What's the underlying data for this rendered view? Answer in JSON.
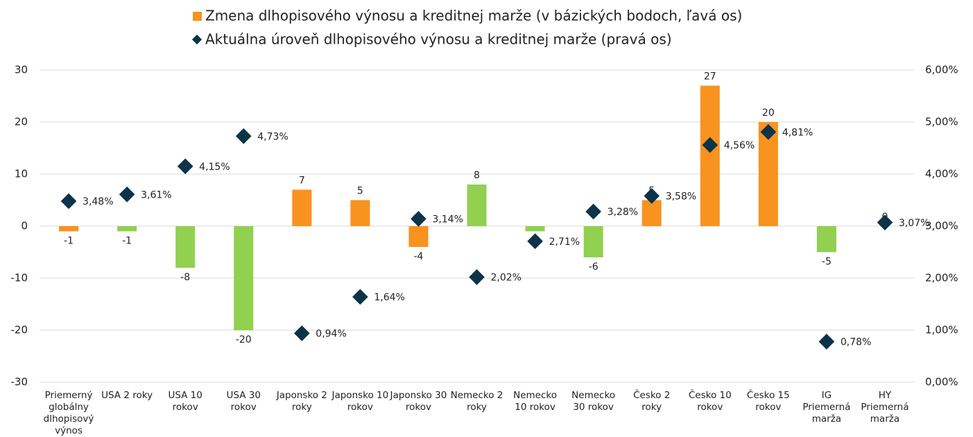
{
  "chart_data": {
    "type": "bar",
    "categories": [
      "Priemerný globálny dlhopisový výnos",
      "USA 2 roky",
      "USA 10 rokov",
      "USA 30 rokov",
      "Japonsko 2 roky",
      "Japonsko 10 rokov",
      "Japonsko 30 rokov",
      "Nemecko 2 roky",
      "Nemecko 10 rokov",
      "Nemecko 30 rokov",
      "Česko 2 roky",
      "Česko 10 rokov",
      "Česko 15 rokov",
      "IG Priemerná marža",
      "HY Priemerná marža"
    ],
    "series": [
      {
        "name": "Zmena dlhopisového výnosu a kreditnej marže (v bázických bodoch, ľavá os)",
        "type": "bar",
        "color": "#f7931e",
        "colors": [
          "#f7931e",
          "#92d050",
          "#92d050",
          "#92d050",
          "#f7931e",
          "#f7931e",
          "#f7931e",
          "#92d050",
          "#92d050",
          "#92d050",
          "#f7931e",
          "#f7931e",
          "#f7931e",
          "#92d050",
          "#92d050"
        ],
        "values": [
          -1,
          -1,
          -8,
          -20,
          7,
          5,
          -4,
          8,
          -1,
          -6,
          5,
          27,
          20,
          -5,
          0
        ]
      },
      {
        "name": "Aktuálna úroveň dlhopisového výnosu a kreditnej marže (pravá os)",
        "type": "scatter",
        "axis": "y2",
        "color": "#0d3349",
        "values": [
          3.48,
          3.61,
          4.15,
          4.73,
          0.94,
          1.64,
          3.14,
          2.02,
          2.71,
          3.28,
          3.58,
          4.56,
          4.81,
          0.78,
          3.07
        ],
        "value_labels": [
          "3,48%",
          "3,61%",
          "4,15%",
          "4,73%",
          "0,94%",
          "1,64%",
          "3,14%",
          "2,02%",
          "2,71%",
          "3,28%",
          "3,58%",
          "4,56%",
          "4,81%",
          "0,78%",
          "3,07%"
        ]
      }
    ],
    "ylim": [
      -30,
      30
    ],
    "yticks": [
      -30,
      -20,
      -10,
      0,
      10,
      20,
      30
    ],
    "y2lim": [
      0,
      6
    ],
    "y2ticks": [
      {
        "value": 0,
        "label": "0,00%"
      },
      {
        "value": 1,
        "label": "1,00%"
      },
      {
        "value": 2,
        "label": "2,00%"
      },
      {
        "value": 3,
        "label": "3,00%"
      },
      {
        "value": 4,
        "label": "4,00%"
      },
      {
        "value": 5,
        "label": "5,00%"
      },
      {
        "value": 6,
        "label": "6,00%"
      }
    ],
    "grid": true,
    "legend": "top"
  }
}
